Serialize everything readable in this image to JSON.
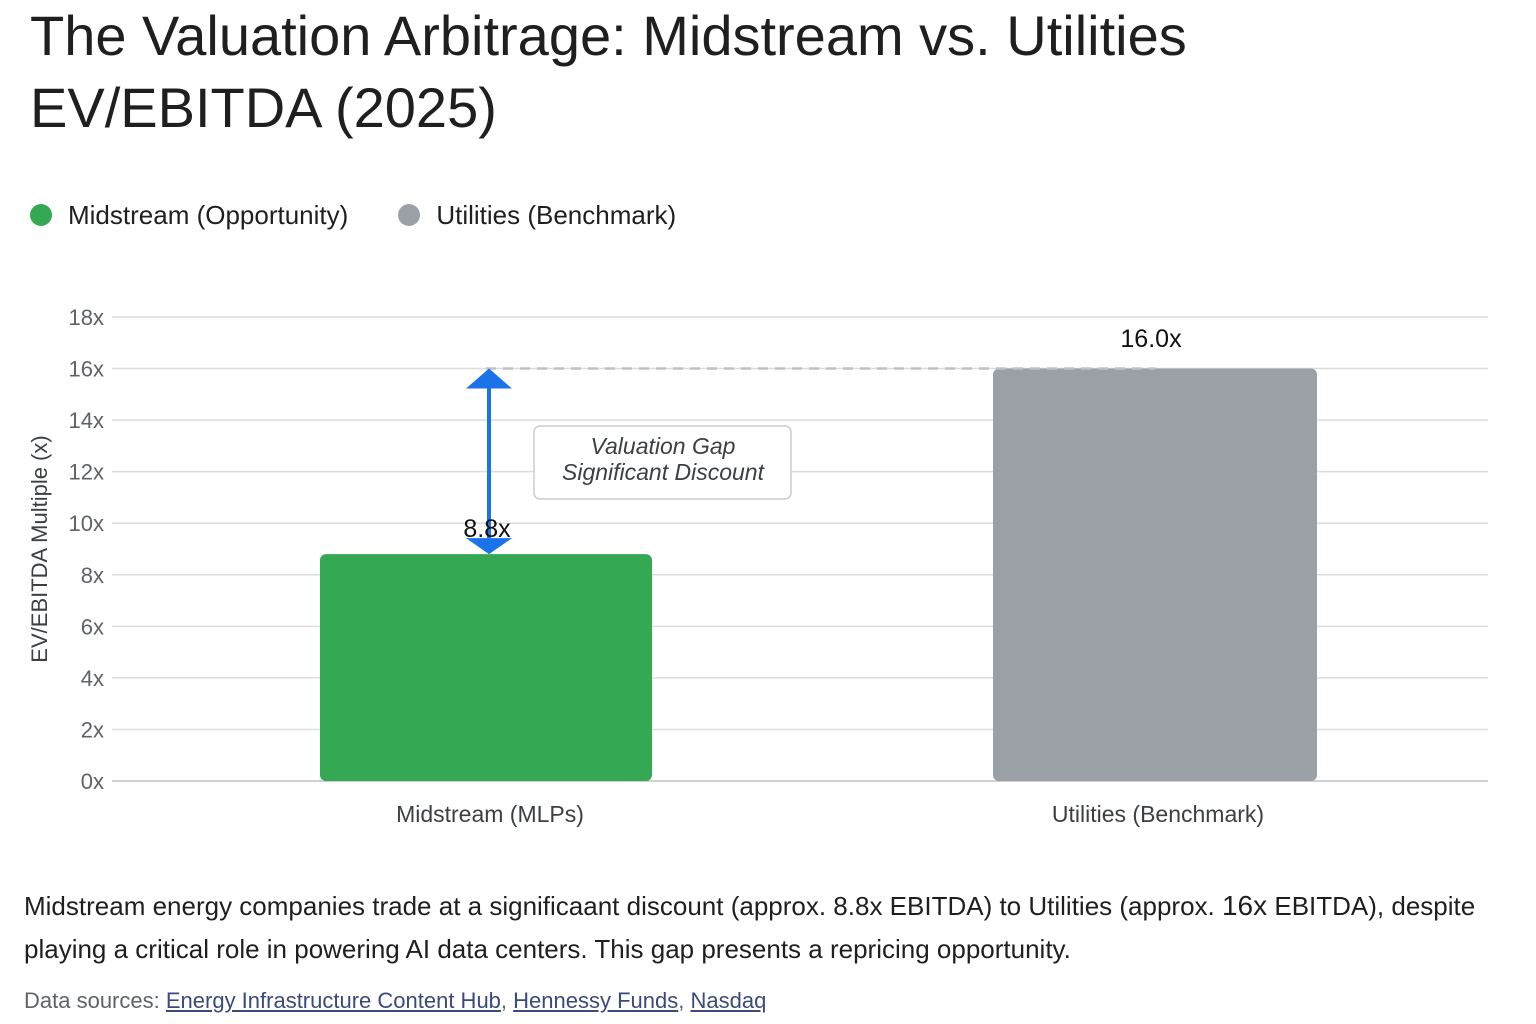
{
  "title": "The Valuation Arbitrage: Midstream vs. Utilities EV/EBITDA (2025)",
  "legend": [
    {
      "label": "Midstream (Opportunity)",
      "color": "#34a853"
    },
    {
      "label": "Utilities (Benchmark)",
      "color": "#9aa0a6"
    }
  ],
  "chart_data": {
    "type": "bar",
    "categories": [
      "Midstream (MLPs)",
      "Utilities (Benchmark)"
    ],
    "values": [
      8.8,
      16.0
    ],
    "value_labels": [
      "8.8x",
      "16.0x"
    ],
    "colors": [
      "#34a853",
      "#9aa0a6"
    ],
    "ylabel": "EV/EBITDA Multiple (x)",
    "ylim": [
      0,
      18
    ],
    "yticks": [
      0,
      2,
      4,
      6,
      8,
      10,
      12,
      14,
      16,
      18
    ],
    "tick_suffix": "x",
    "grid": true,
    "legend_position": "top-left",
    "annotation": {
      "lines": [
        "Valuation Gap",
        "Significant Discount"
      ],
      "from_value": 8.8,
      "to_value": 16.0,
      "arrow_color": "#1a73e8"
    }
  },
  "description": {
    "part1": "Midstream energy companies trade at a significaant discount (approx. 8.8x EBITDA) to Utilities (approx. ",
    "big": "16x",
    "part2": " EBITDA), despite playing a critical role in powering AI data centers. This gap presents a repricing opportunity."
  },
  "sources": {
    "prefix": "Data sources:",
    "links": [
      "Energy Infrastructure Content Hub",
      "Hennessy Funds",
      "Nasdaq"
    ]
  }
}
